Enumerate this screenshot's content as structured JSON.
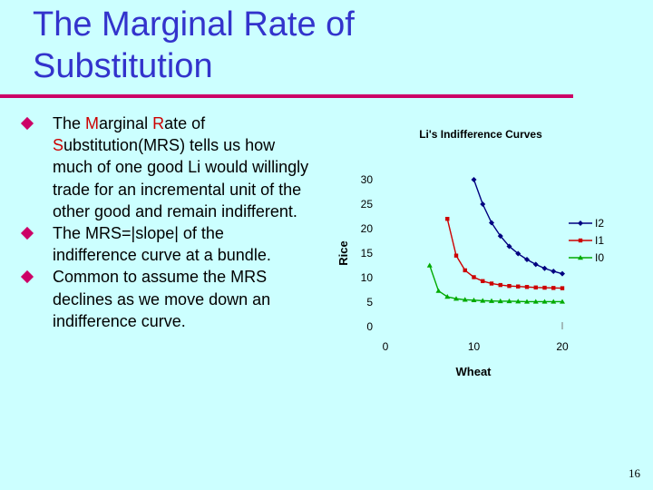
{
  "slide": {
    "title": "The Marginal Rate of Substitution",
    "page_number": "16",
    "colors": {
      "title": "#3333cc",
      "rule": "#cc0066",
      "bullet": "#cc0066",
      "highlight": "#cc0000",
      "background": "#ccffff"
    }
  },
  "bullets": [
    {
      "pre1": "The ",
      "hl1": "M",
      "mid1": "arginal ",
      "hl2": "R",
      "mid2": "ate of ",
      "hl3": "S",
      "post": "ubstitution(MRS) tells us how much of one good Li would willingly trade for an incremental unit of the other good and remain indifferent."
    },
    {
      "text": "The MRS=|slope| of the indifference curve at a bundle."
    },
    {
      "text": "Common to assume the MRS declines as we move down an indifference curve."
    }
  ],
  "chart_data": {
    "type": "line",
    "title": "Li's Indifference Curves",
    "xlabel": "Wheat",
    "ylabel": "Rice",
    "xlim": [
      0,
      20
    ],
    "ylim": [
      0,
      30
    ],
    "x_ticks": [
      "0",
      "10",
      "20"
    ],
    "y_ticks": [
      "0",
      "5",
      "10",
      "15",
      "20",
      "25",
      "30"
    ],
    "legend_position": "right",
    "series": [
      {
        "name": "I2",
        "color": "#000080",
        "marker": "diamond",
        "x": [
          10,
          11,
          12,
          13,
          14,
          15,
          16,
          17,
          18,
          19,
          20
        ],
        "y": [
          30,
          25,
          21.2,
          18.5,
          16.4,
          14.9,
          13.7,
          12.7,
          11.9,
          11.3,
          10.8
        ]
      },
      {
        "name": "I1",
        "color": "#cc0000",
        "marker": "square",
        "x": [
          7,
          8,
          9,
          10,
          11,
          12,
          13,
          14,
          15,
          16,
          17,
          18,
          19,
          20
        ],
        "y": [
          22,
          14.5,
          11.5,
          10.1,
          9.3,
          8.8,
          8.5,
          8.3,
          8.2,
          8.1,
          8.0,
          7.95,
          7.9,
          7.85
        ]
      },
      {
        "name": "I0",
        "color": "#00aa00",
        "marker": "triangle",
        "x": [
          5,
          6,
          7,
          8,
          9,
          10,
          11,
          12,
          13,
          14,
          15,
          16,
          17,
          18,
          19,
          20
        ],
        "y": [
          12.5,
          7.3,
          6.1,
          5.7,
          5.5,
          5.4,
          5.3,
          5.25,
          5.2,
          5.2,
          5.15,
          5.1,
          5.1,
          5.1,
          5.1,
          5.1
        ]
      }
    ]
  }
}
